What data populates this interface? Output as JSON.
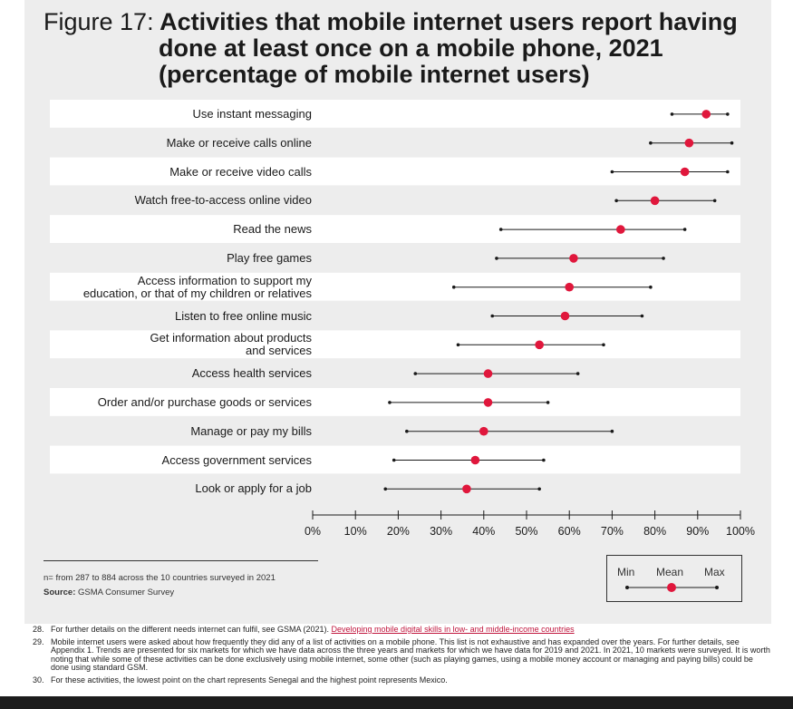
{
  "figure": {
    "label": "Figure 17:",
    "title_line1": "Activities that mobile internet users report having",
    "title_line2": "done at least once on a mobile phone, 2021",
    "title_line3": "(percentage of mobile internet users)"
  },
  "colors": {
    "panel": "#ededed",
    "band": "#ffffff",
    "mean_dot": "#e0173c",
    "line": "#1a1a1a"
  },
  "chart_data": {
    "type": "range-dot",
    "xlim": [
      0,
      100
    ],
    "x_ticks": [
      "0%",
      "10%",
      "20%",
      "30%",
      "40%",
      "50%",
      "60%",
      "70%",
      "80%",
      "90%",
      "100%"
    ],
    "categories": [
      "Use instant messaging",
      "Make or receive calls online",
      "Make or receive video calls",
      "Watch free-to-access online video",
      "Read the news",
      "Play free games",
      "Access information to support my\neducation, or that of my children or relatives",
      "Listen to free online music",
      "Get information about products\nand services",
      "Access health services",
      "Order and/or purchase goods or services",
      "Manage or pay my bills",
      "Access government services",
      "Look or apply for a job"
    ],
    "series": [
      {
        "name": "Min",
        "values": [
          84,
          79,
          70,
          71,
          44,
          43,
          33,
          42,
          34,
          24,
          18,
          22,
          19,
          17
        ]
      },
      {
        "name": "Mean",
        "values": [
          92,
          88,
          87,
          80,
          72,
          61,
          60,
          59,
          53,
          41,
          41,
          40,
          38,
          36
        ]
      },
      {
        "name": "Max",
        "values": [
          97,
          98,
          97,
          94,
          87,
          82,
          79,
          77,
          68,
          62,
          55,
          70,
          54,
          53
        ]
      }
    ]
  },
  "legend": {
    "min": "Min",
    "mean": "Mean",
    "max": "Max"
  },
  "notes": {
    "n": "n= from 287 to 884 across the 10 countries surveyed in 2021",
    "source_label": "Source:",
    "source_text": " GSMA Consumer Survey"
  },
  "footnotes": [
    {
      "num": "28.",
      "text": "For further details on the different needs internet can fulfil, see GSMA (2021). ",
      "link": "Developing mobile digital skills in low- and middle-income countries"
    },
    {
      "num": "29.",
      "text": "Mobile internet users were asked about how frequently they did any of a list of activities on a mobile phone. This list is not exhaustive and has expanded over the years. For further details, see Appendix 1. Trends are presented for six markets for which we have data across the three years and markets for which we have data for 2019 and 2021. In 2021, 10 markets were surveyed. It is worth noting that while some of these activities can be done exclusively using mobile internet, some other (such as playing games, using a mobile money account or managing and paying bills) could be done using standard GSM.",
      "link": ""
    },
    {
      "num": "30.",
      "text": "For these activities, the lowest point on the chart represents Senegal and the highest point represents Mexico.",
      "link": ""
    }
  ]
}
